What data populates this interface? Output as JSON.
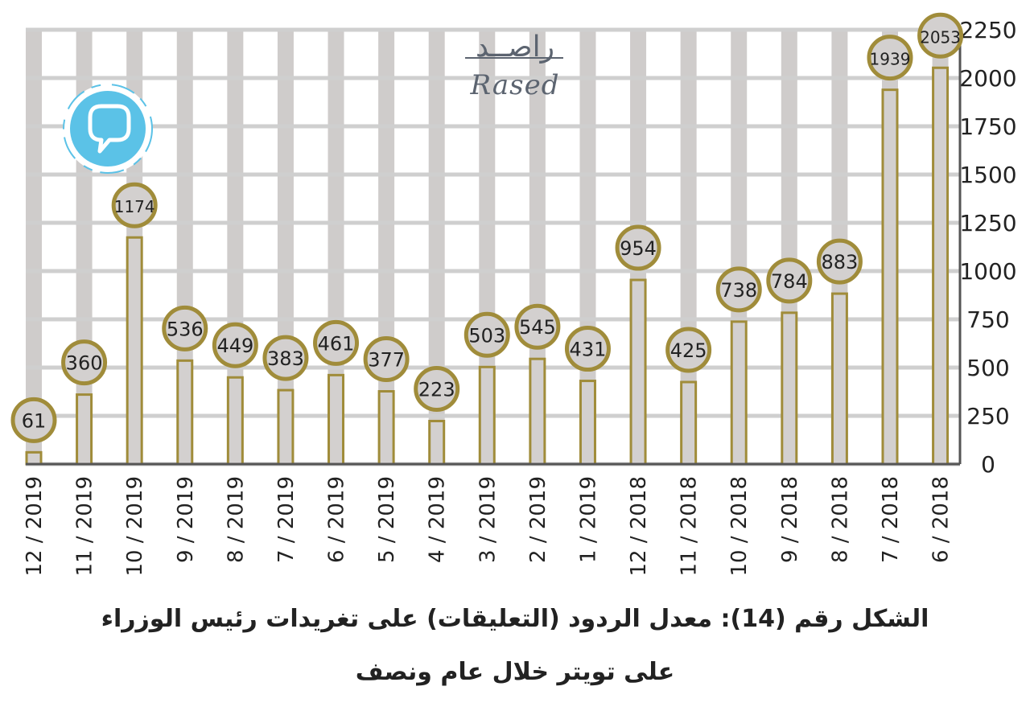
{
  "brand": {
    "arabic": "راصــد",
    "latin": "Rased"
  },
  "logo": {
    "icon": "speech-bubble-icon",
    "color": "#5bc2e7"
  },
  "caption": {
    "line1": "الشكل رقم (14): معدل الردود (التعليقات) على تغريدات رئيس الوزراء",
    "line2": "على تويتر خلال عام ونصف"
  },
  "colors": {
    "bar_fill": "#d3d0cf",
    "bar_stroke": "#a08c3a",
    "label_ring": "#a08c3a",
    "grid": "#cfcfcf",
    "stripe": "#cfcccb",
    "axis": "#555555"
  },
  "chart_data": {
    "type": "bar",
    "categories": [
      "12 / 2019",
      "11 / 2019",
      "10 / 2019",
      "9 / 2019",
      "8 / 2019",
      "7 / 2019",
      "6 / 2019",
      "5 / 2019",
      "4 / 2019",
      "3 / 2019",
      "2 / 2019",
      "1 / 2019",
      "12 / 2018",
      "11 / 2018",
      "10 / 2018",
      "9 / 2018",
      "8 / 2018",
      "7 / 2018",
      "6 / 2018"
    ],
    "values": [
      61,
      360,
      1174,
      536,
      449,
      383,
      461,
      377,
      223,
      503,
      545,
      431,
      954,
      425,
      738,
      784,
      883,
      1939,
      2053
    ],
    "ylim": [
      0,
      2250
    ],
    "yticks": [
      0,
      250,
      500,
      750,
      1000,
      1250,
      1500,
      1750,
      2000,
      2250
    ],
    "y_axis_side": "right",
    "grid": true,
    "title": "",
    "xlabel": "",
    "ylabel": ""
  }
}
